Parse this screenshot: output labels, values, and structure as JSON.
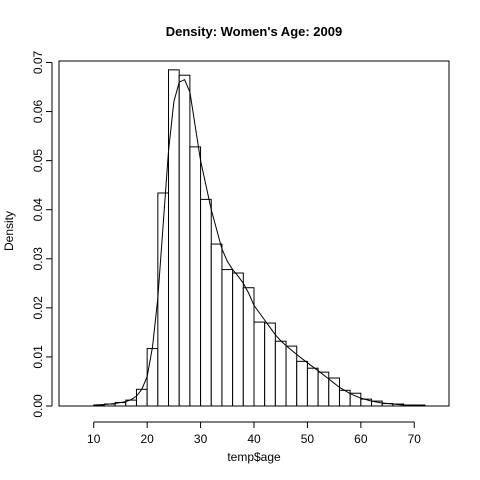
{
  "chart_data": {
    "type": "bar",
    "title": "Density: Women's Age:  2009",
    "xlabel": "temp$age",
    "ylabel": "Density",
    "xlim": [
      3.5,
      76.5
    ],
    "ylim": [
      0,
      0.0703
    ],
    "x_ticks": [
      10,
      20,
      30,
      40,
      50,
      60,
      70
    ],
    "y_ticks": [
      0.0,
      0.01,
      0.02,
      0.03,
      0.04,
      0.05,
      0.06,
      0.07
    ],
    "y_tick_labels": [
      "0.00",
      "0.01",
      "0.02",
      "0.03",
      "0.04",
      "0.05",
      "0.06",
      "0.07"
    ],
    "grid": false,
    "bin_width": 2,
    "bin_edges": [
      10,
      12,
      14,
      16,
      18,
      20,
      22,
      24,
      26,
      28,
      30,
      32,
      34,
      36,
      38,
      40,
      42,
      44,
      46,
      48,
      50,
      52,
      54,
      56,
      58,
      60,
      62,
      64,
      66,
      68,
      70,
      72
    ],
    "values": [
      0.0002,
      0.0004,
      0.0007,
      0.0012,
      0.0034,
      0.0117,
      0.0434,
      0.0685,
      0.0674,
      0.0528,
      0.0421,
      0.033,
      0.0278,
      0.0271,
      0.0241,
      0.0171,
      0.0169,
      0.0132,
      0.0122,
      0.0091,
      0.0077,
      0.0069,
      0.0057,
      0.0032,
      0.0026,
      0.0014,
      0.001,
      0.0005,
      0.0004,
      0.0002,
      0.0002
    ],
    "density_curve": {
      "x": [
        10,
        12,
        14,
        16,
        17,
        18,
        19,
        20,
        21,
        22,
        23,
        24,
        25,
        26,
        27,
        28,
        29,
        30,
        31,
        32,
        33,
        34,
        35,
        36,
        37,
        38,
        39,
        40,
        41,
        42,
        43,
        44,
        45,
        46,
        48,
        50,
        52,
        54,
        56,
        58,
        60,
        62,
        64,
        66,
        68,
        70,
        72
      ],
      "y": [
        0.0002,
        0.0003,
        0.0005,
        0.0009,
        0.0013,
        0.002,
        0.0034,
        0.006,
        0.012,
        0.022,
        0.037,
        0.052,
        0.062,
        0.066,
        0.0665,
        0.064,
        0.057,
        0.05,
        0.045,
        0.04,
        0.036,
        0.032,
        0.0295,
        0.0278,
        0.0265,
        0.025,
        0.023,
        0.0205,
        0.019,
        0.0175,
        0.016,
        0.0145,
        0.0133,
        0.0123,
        0.0105,
        0.0088,
        0.0072,
        0.0055,
        0.0038,
        0.0025,
        0.0016,
        0.001,
        0.0006,
        0.0004,
        0.0002,
        0.0001,
        0.0
      ]
    }
  }
}
